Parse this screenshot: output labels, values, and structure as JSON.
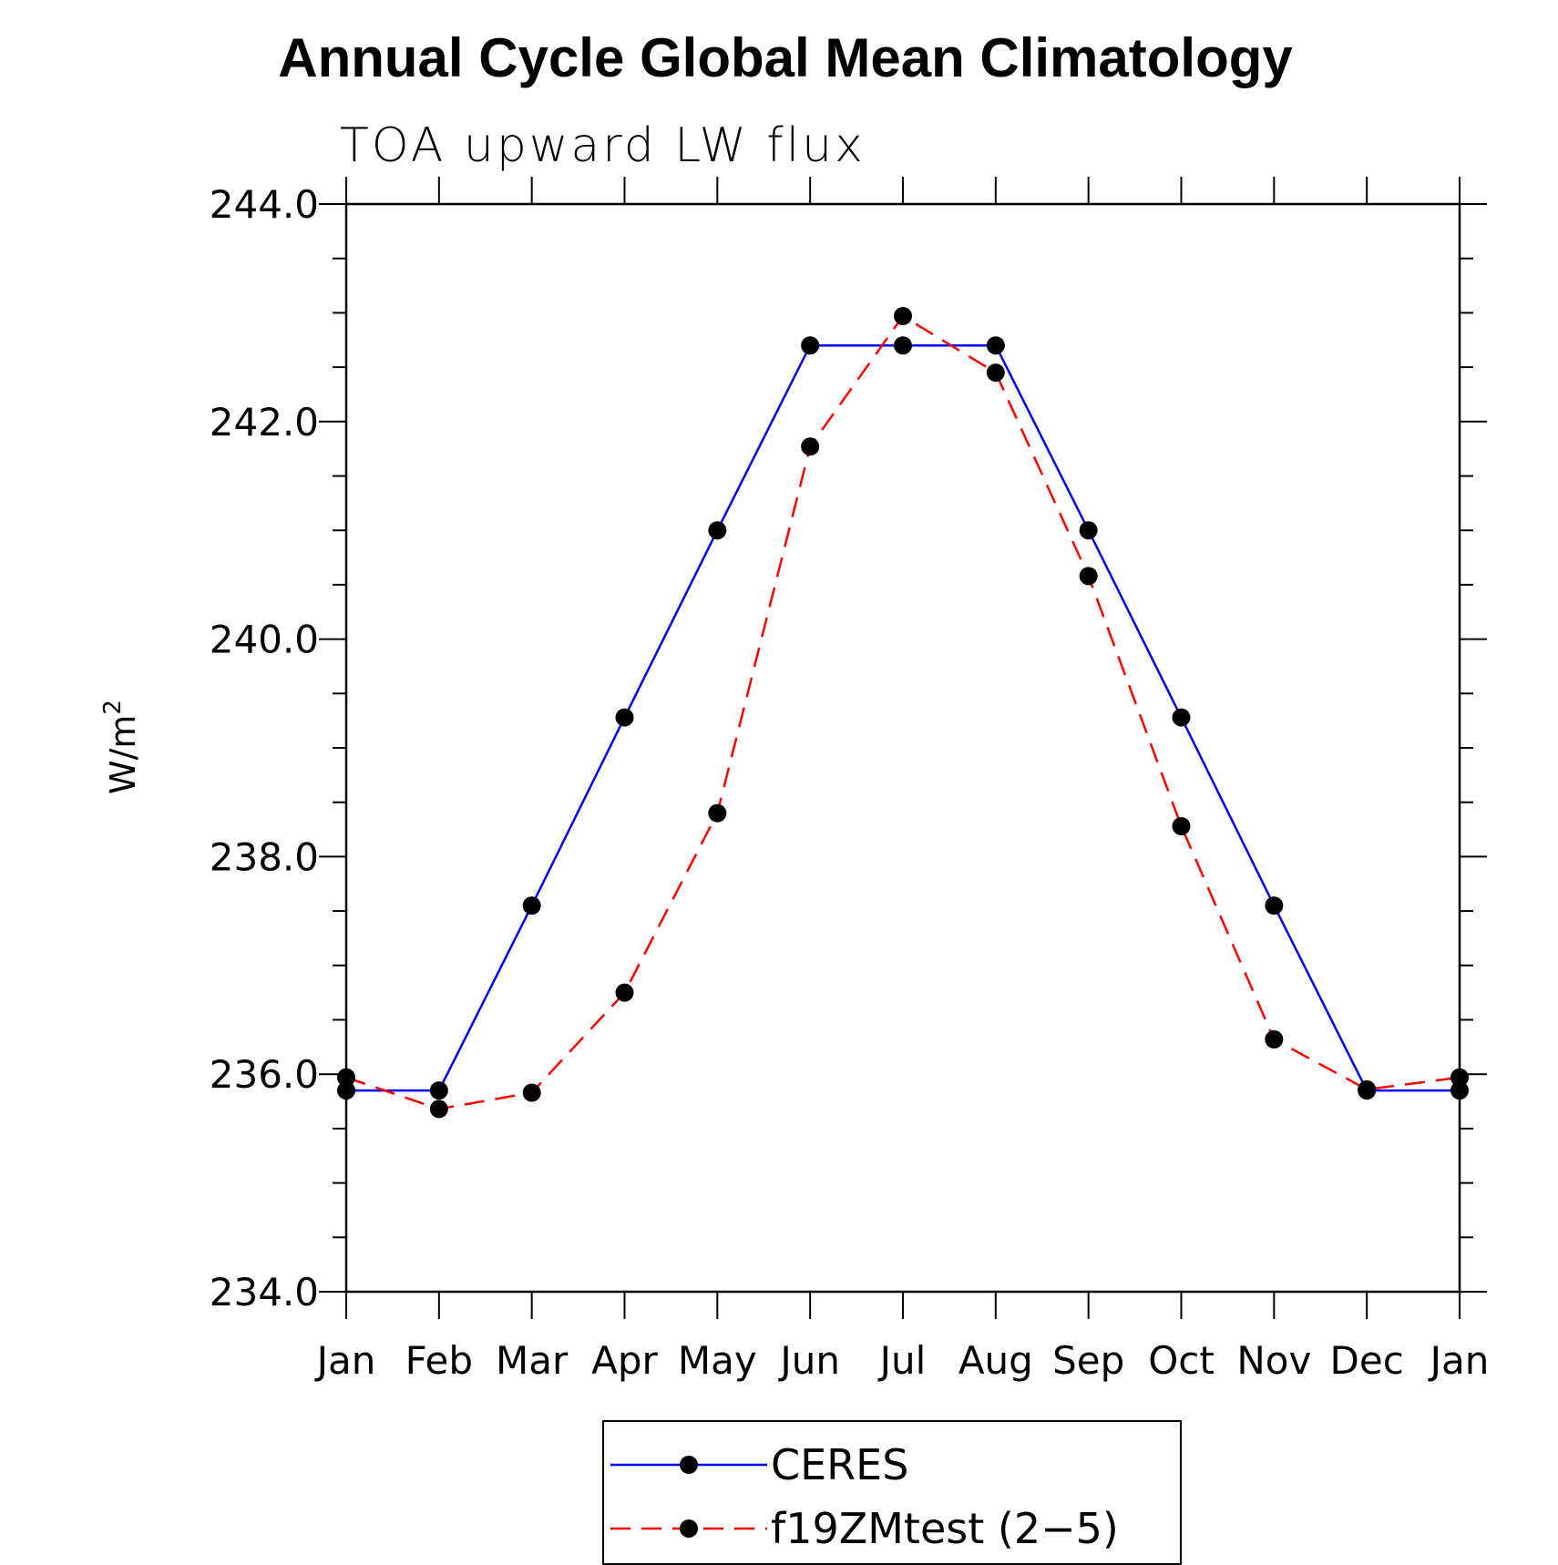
{
  "chart_data": {
    "type": "line",
    "title": "Annual Cycle Global Mean Climatology",
    "subtitle": "TOA upward LW flux",
    "ylabel": "W/m",
    "ylabel_sup": "2",
    "xlabel": "",
    "categories": [
      "Jan",
      "Feb",
      "Mar",
      "Apr",
      "May",
      "Jun",
      "Jul",
      "Aug",
      "Sep",
      "Oct",
      "Nov",
      "Dec",
      "Jan"
    ],
    "ylim": [
      234.0,
      244.0
    ],
    "yticks_major": [
      234.0,
      236.0,
      238.0,
      240.0,
      242.0,
      244.0
    ],
    "ytick_labels": [
      "234.0",
      "236.0",
      "238.0",
      "240.0",
      "242.0",
      "244.0"
    ],
    "yticks_minor_step": 0.5,
    "grid": false,
    "legend_placement": "bottom-center",
    "series": [
      {
        "name": "CERES",
        "color": "#0000ff",
        "line_style": "solid",
        "marker": "filled-circle",
        "marker_color": "#000000",
        "values": [
          235.85,
          235.85,
          237.55,
          239.28,
          241.0,
          242.7,
          242.7,
          242.7,
          241.0,
          239.28,
          237.55,
          235.85,
          235.85
        ]
      },
      {
        "name": "f19ZMtest (2-5)",
        "color": "#ff0000",
        "line_style": "dashed",
        "marker": "filled-circle",
        "marker_color": "#000000",
        "values": [
          235.97,
          235.68,
          235.83,
          236.75,
          238.4,
          241.77,
          242.97,
          242.45,
          240.58,
          238.28,
          236.32,
          235.86,
          235.97
        ]
      }
    ],
    "legend_labels": [
      "CERES",
      "f19ZMtest (2−5)"
    ]
  }
}
